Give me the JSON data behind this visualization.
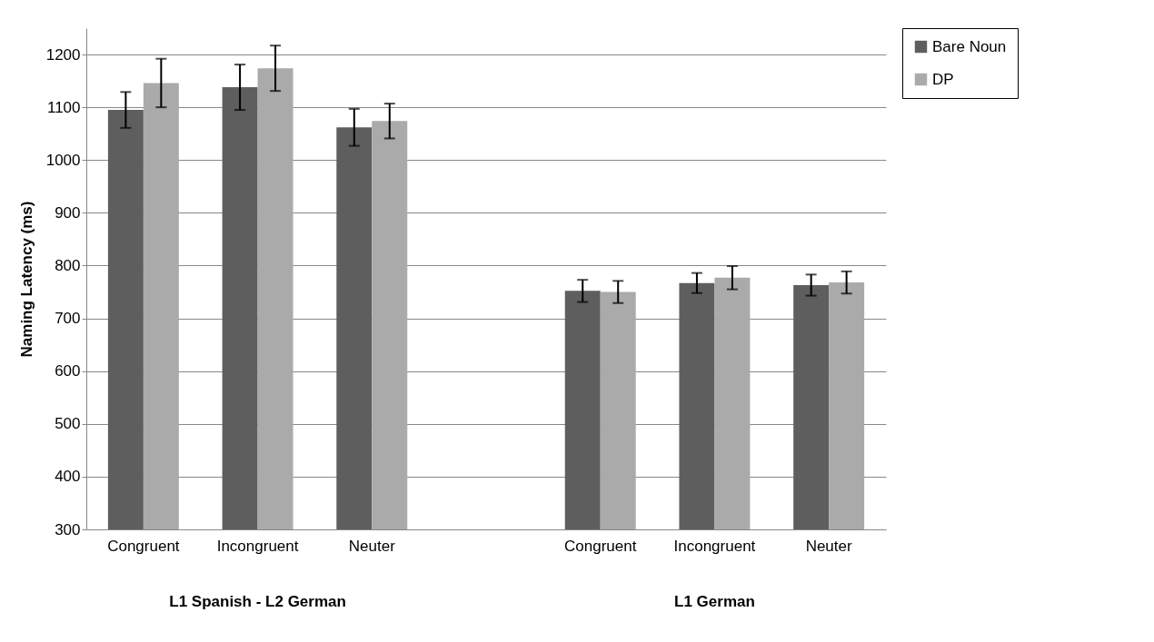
{
  "chart_data": {
    "type": "bar",
    "ylabel": "Naming Latency (ms)",
    "categories": [
      "Congruent",
      "Incongruent",
      "Neuter",
      null,
      "Congruent",
      "Incongruent",
      "Neuter"
    ],
    "series": [
      {
        "name": "Bare Noun",
        "color": "#5e5e5e",
        "values": [
          1095,
          1138,
          1062,
          null,
          752,
          767,
          763
        ],
        "errors": [
          34,
          43,
          35,
          null,
          21,
          19,
          20
        ]
      },
      {
        "name": "DP",
        "color": "#aaaaaa",
        "values": [
          1146,
          1174,
          1074,
          null,
          750,
          777,
          768
        ],
        "errors": [
          46,
          43,
          33,
          null,
          21,
          22,
          21
        ]
      }
    ],
    "ylim": [
      300,
      1250
    ],
    "yticks": [
      300,
      400,
      500,
      600,
      700,
      800,
      900,
      1000,
      1100,
      1200
    ],
    "grid": "y",
    "legend": "right",
    "annotations": [
      "L1 Spanish - L2 German",
      "L1 German"
    ]
  }
}
